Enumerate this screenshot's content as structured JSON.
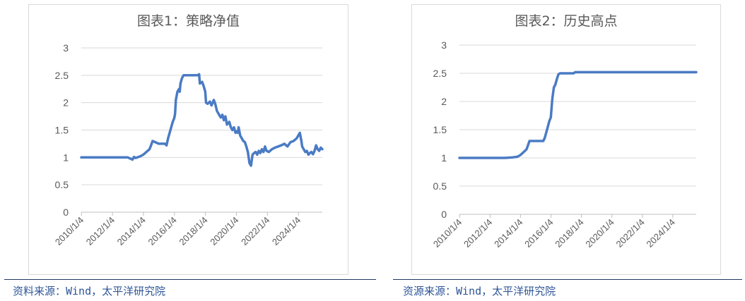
{
  "chart_data": [
    {
      "type": "line",
      "title": "图表1：策略净值",
      "xlabel": "",
      "ylabel": "",
      "ylim": [
        0,
        3
      ],
      "yticks": [
        "0",
        "0.5",
        "1",
        "1.5",
        "2",
        "2.5",
        "3"
      ],
      "xticks": [
        "2010/1/4",
        "2012/1/4",
        "2014/1/4",
        "2016/1/4",
        "2018/1/4",
        "2020/1/4",
        "2022/1/4",
        "2024/1/4"
      ],
      "grid": true,
      "line_color": "#4a7bc4",
      "series": [
        {
          "x": [
            2010.0,
            2013.0,
            2013.3,
            2013.4,
            2013.5,
            2013.8,
            2014.0,
            2014.2,
            2014.4,
            2014.5,
            2014.6,
            2015.0,
            2015.4,
            2015.5,
            2015.6,
            2015.7,
            2015.8,
            2015.85,
            2015.9,
            2016.0,
            2016.05,
            2016.1,
            2016.2,
            2016.3,
            2016.35,
            2016.4,
            2016.5,
            2016.6,
            2016.7,
            2016.8,
            2016.9,
            2017.0,
            2017.5,
            2017.6,
            2017.65,
            2017.8,
            2017.9,
            2018.0,
            2018.05,
            2018.15,
            2018.3,
            2018.4,
            2018.55,
            2018.65,
            2018.75,
            2018.85,
            2018.95,
            2019.0,
            2019.1,
            2019.2,
            2019.3,
            2019.4,
            2019.55,
            2019.65,
            2019.75,
            2019.85,
            2019.95,
            2020.05,
            2020.1,
            2020.15,
            2020.25,
            2020.35,
            2020.45,
            2020.55,
            2020.65,
            2020.75,
            2020.85,
            2020.95,
            2021.05,
            2021.15,
            2021.25,
            2021.35,
            2021.45,
            2021.55,
            2021.65,
            2021.75,
            2021.85,
            2021.95,
            2022.1,
            2022.3,
            2022.5,
            2022.7,
            2022.9,
            2023.1,
            2023.3,
            2023.5,
            2023.7,
            2023.9,
            2024.0,
            2024.1,
            2024.2,
            2024.25,
            2024.35,
            2024.45,
            2024.55,
            2024.65,
            2024.75,
            2024.85,
            2024.95,
            2025.05,
            2025.15,
            2025.25,
            2025.35,
            2025.45,
            2025.55
          ],
          "y": [
            1.0,
            1.0,
            0.96,
            1.01,
            0.99,
            1.02,
            1.05,
            1.1,
            1.15,
            1.22,
            1.3,
            1.25,
            1.25,
            1.22,
            1.35,
            1.45,
            1.55,
            1.6,
            1.65,
            1.72,
            1.8,
            2.05,
            2.2,
            2.25,
            2.2,
            2.35,
            2.45,
            2.5,
            2.5,
            2.5,
            2.5,
            2.5,
            2.5,
            2.52,
            2.35,
            2.38,
            2.3,
            2.2,
            2.0,
            1.98,
            2.02,
            1.95,
            2.05,
            1.97,
            1.85,
            1.8,
            1.75,
            1.73,
            1.78,
            1.68,
            1.75,
            1.6,
            1.65,
            1.55,
            1.5,
            1.55,
            1.45,
            1.48,
            1.45,
            1.55,
            1.4,
            1.35,
            1.3,
            1.28,
            1.2,
            1.1,
            0.9,
            0.85,
            1.05,
            1.08,
            1.1,
            1.05,
            1.12,
            1.08,
            1.15,
            1.1,
            1.2,
            1.12,
            1.1,
            1.15,
            1.18,
            1.2,
            1.22,
            1.25,
            1.2,
            1.28,
            1.3,
            1.35,
            1.4,
            1.45,
            1.3,
            1.2,
            1.15,
            1.1,
            1.12,
            1.05,
            1.08,
            1.1,
            1.06,
            1.12,
            1.22,
            1.15,
            1.12,
            1.18,
            1.15
          ]
        }
      ]
    },
    {
      "type": "line",
      "title": "图表2：历史高点",
      "xlabel": "",
      "ylabel": "",
      "ylim": [
        0,
        3
      ],
      "yticks": [
        "0",
        "0.5",
        "1",
        "1.5",
        "2",
        "2.5",
        "3"
      ],
      "xticks": [
        "2010/1/4",
        "2012/1/4",
        "2014/1/4",
        "2016/1/4",
        "2018/1/4",
        "2020/1/4",
        "2022/1/4",
        "2024/1/4"
      ],
      "grid": true,
      "line_color": "#4a7bc4",
      "series": [
        {
          "x": [
            2010.0,
            2013.0,
            2013.5,
            2013.8,
            2014.0,
            2014.2,
            2014.4,
            2014.5,
            2014.6,
            2015.0,
            2015.5,
            2015.6,
            2015.7,
            2015.8,
            2015.9,
            2016.0,
            2016.1,
            2016.2,
            2016.3,
            2016.4,
            2016.5,
            2016.6,
            2016.7,
            2017.0,
            2017.5,
            2017.6,
            2018.0,
            2020.0,
            2022.0,
            2024.0,
            2025.55
          ],
          "y": [
            1.0,
            1.0,
            1.01,
            1.02,
            1.05,
            1.1,
            1.15,
            1.22,
            1.3,
            1.3,
            1.3,
            1.35,
            1.45,
            1.55,
            1.65,
            1.72,
            2.05,
            2.25,
            2.3,
            2.4,
            2.48,
            2.5,
            2.5,
            2.5,
            2.5,
            2.52,
            2.52,
            2.52,
            2.52,
            2.52,
            2.52
          ]
        }
      ]
    }
  ],
  "source": {
    "left": "资料来源：Wind，太平洋研究院",
    "right": "资源来源：Wind，太平洋研究院"
  }
}
